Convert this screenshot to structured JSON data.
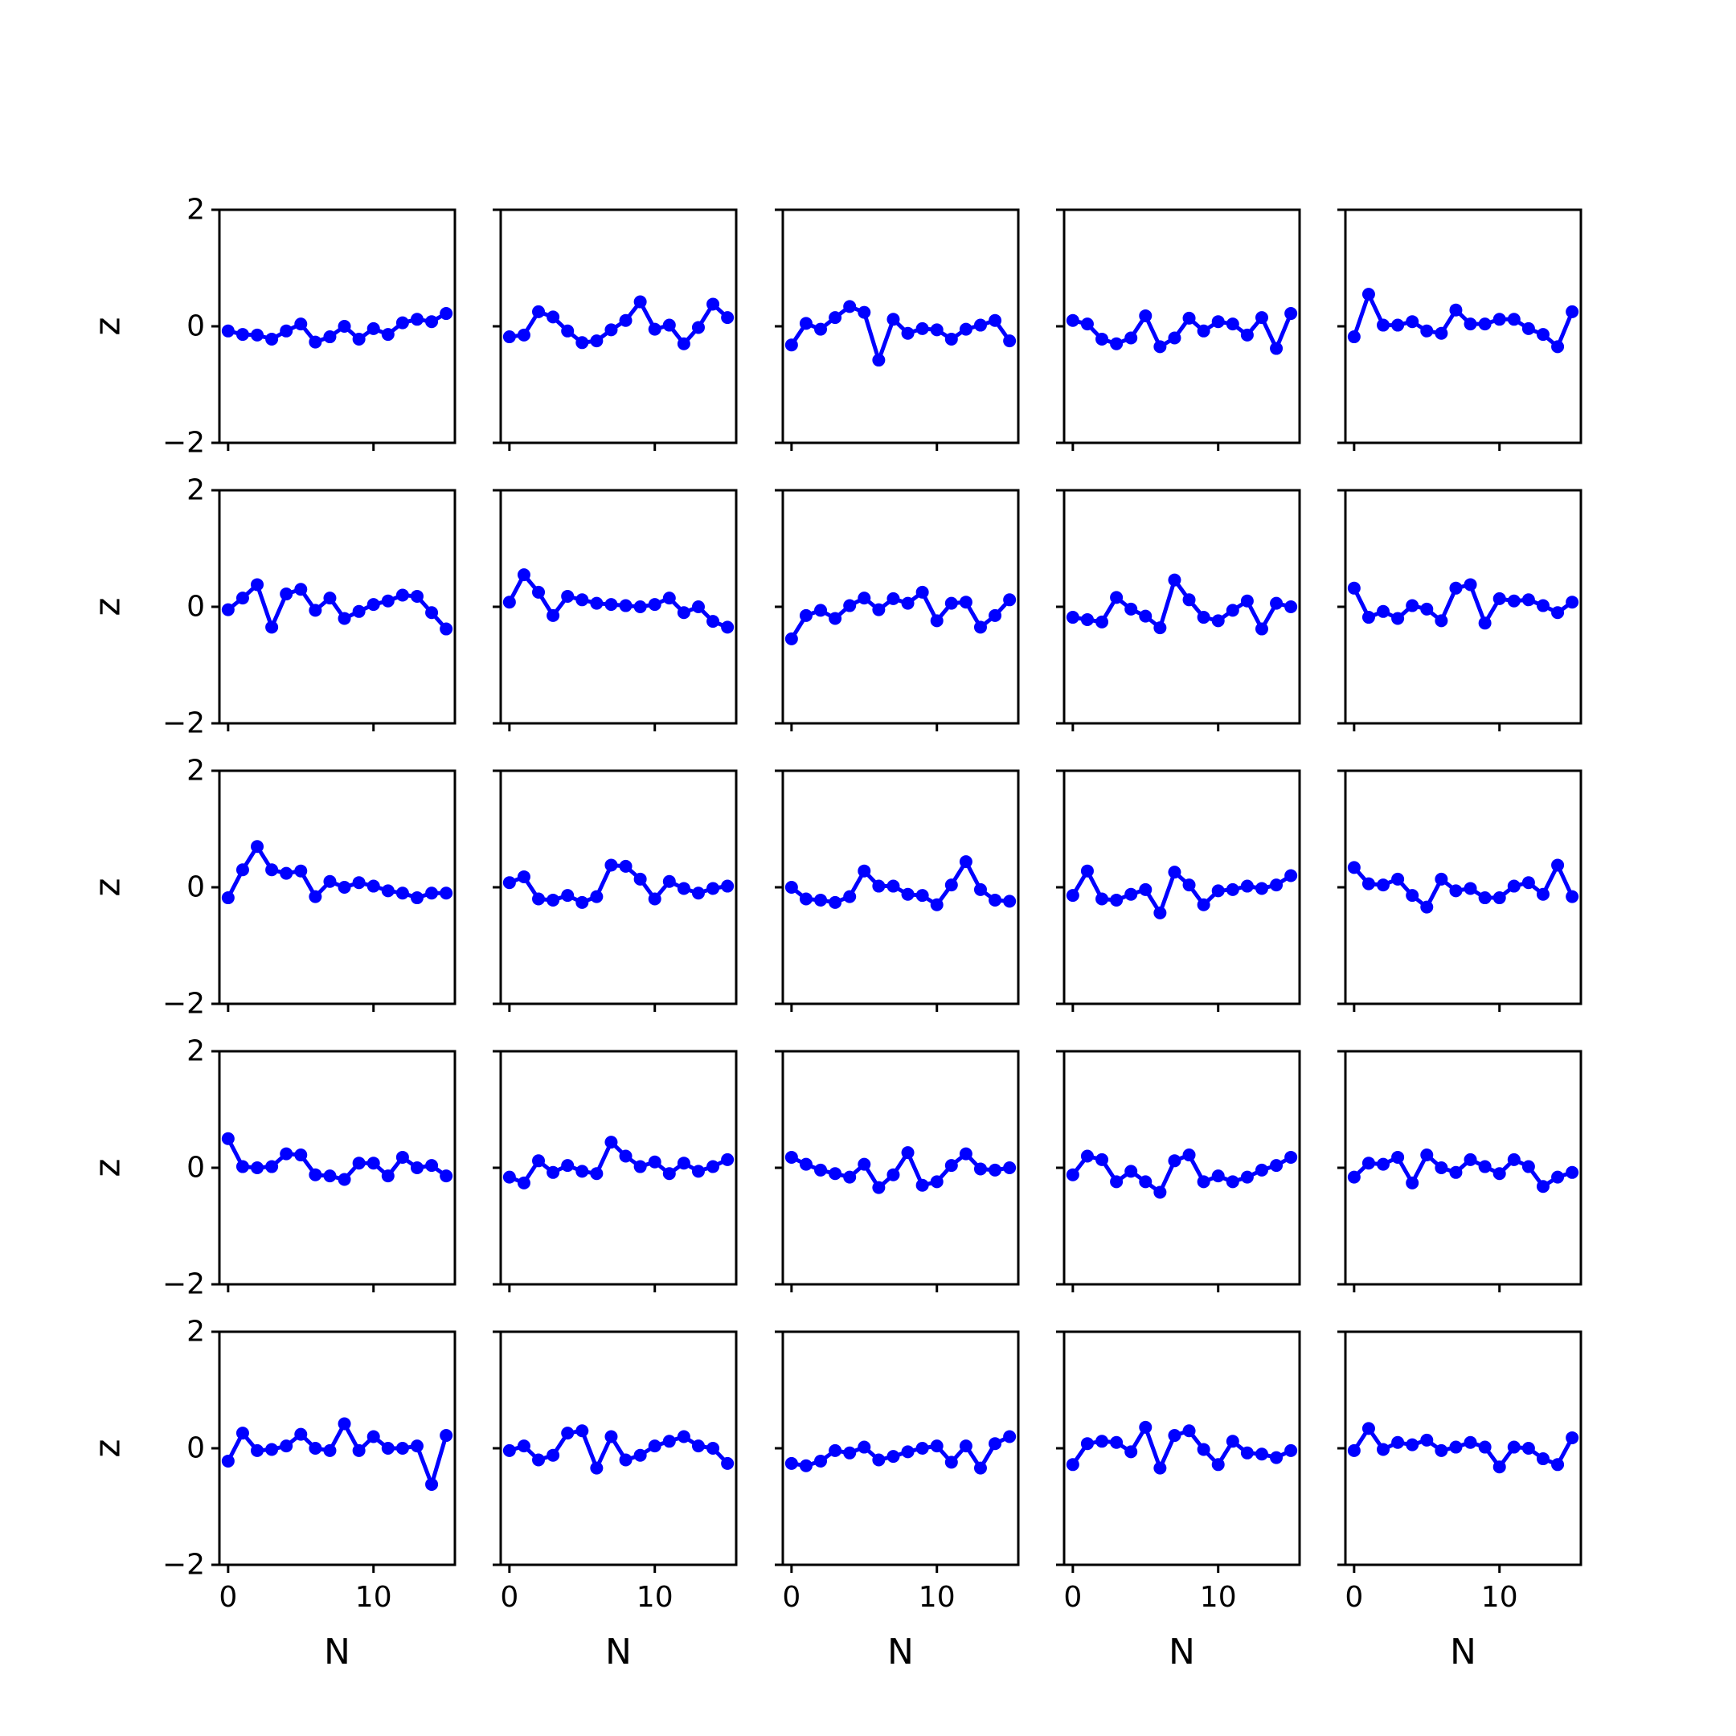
{
  "chart_data": {
    "type": "line",
    "layout": "grid",
    "rows": 5,
    "cols": 5,
    "xlabel": "N",
    "ylabel": "z",
    "xlim": [
      -0.6,
      15.6
    ],
    "ylim": [
      -2,
      2
    ],
    "xticks": [
      0,
      10
    ],
    "xtick_labels": [
      "0",
      "10"
    ],
    "yticks": [
      -2,
      0,
      2
    ],
    "ytick_labels": [
      "−2",
      "0",
      "2"
    ],
    "marker": "circle",
    "color": "#0000ff",
    "x": [
      0,
      1,
      2,
      3,
      4,
      5,
      6,
      7,
      8,
      9,
      10,
      11,
      12,
      13,
      14,
      15
    ],
    "panels": [
      {
        "row": 1,
        "col": 1,
        "y": [
          -0.08,
          -0.14,
          -0.15,
          -0.22,
          -0.08,
          0.04,
          -0.27,
          -0.18,
          0.0,
          -0.22,
          -0.04,
          -0.14,
          0.06,
          0.12,
          0.08,
          0.22
        ]
      },
      {
        "row": 1,
        "col": 2,
        "y": [
          -0.18,
          -0.15,
          0.25,
          0.16,
          -0.08,
          -0.28,
          -0.25,
          -0.06,
          0.1,
          0.42,
          -0.05,
          0.02,
          -0.3,
          -0.02,
          0.38,
          0.15
        ]
      },
      {
        "row": 1,
        "col": 3,
        "y": [
          -0.32,
          0.05,
          -0.05,
          0.15,
          0.34,
          0.24,
          -0.58,
          0.12,
          -0.12,
          -0.04,
          -0.06,
          -0.22,
          -0.05,
          0.02,
          0.1,
          -0.25
        ]
      },
      {
        "row": 1,
        "col": 4,
        "y": [
          0.1,
          0.04,
          -0.22,
          -0.3,
          -0.2,
          0.18,
          -0.35,
          -0.2,
          0.14,
          -0.08,
          0.08,
          0.04,
          -0.15,
          0.15,
          -0.38,
          0.22
        ]
      },
      {
        "row": 1,
        "col": 5,
        "y": [
          -0.18,
          0.55,
          0.02,
          0.02,
          0.08,
          -0.08,
          -0.12,
          0.28,
          0.04,
          0.04,
          0.12,
          0.12,
          -0.04,
          -0.14,
          -0.35,
          0.25
        ]
      },
      {
        "row": 2,
        "col": 1,
        "y": [
          -0.05,
          0.15,
          0.38,
          -0.35,
          0.22,
          0.3,
          -0.06,
          0.15,
          -0.2,
          -0.08,
          0.04,
          0.1,
          0.2,
          0.18,
          -0.1,
          -0.38
        ]
      },
      {
        "row": 2,
        "col": 2,
        "y": [
          0.08,
          0.55,
          0.25,
          -0.15,
          0.18,
          0.12,
          0.06,
          0.04,
          0.02,
          0.0,
          0.04,
          0.15,
          -0.1,
          0.0,
          -0.25,
          -0.35
        ]
      },
      {
        "row": 2,
        "col": 3,
        "y": [
          -0.55,
          -0.15,
          -0.06,
          -0.2,
          0.02,
          0.15,
          -0.05,
          0.14,
          0.06,
          0.25,
          -0.24,
          0.06,
          0.08,
          -0.35,
          -0.15,
          0.12
        ]
      },
      {
        "row": 2,
        "col": 4,
        "y": [
          -0.18,
          -0.22,
          -0.26,
          0.16,
          -0.04,
          -0.16,
          -0.36,
          0.46,
          0.12,
          -0.18,
          -0.24,
          -0.06,
          0.1,
          -0.38,
          0.06,
          0.0
        ]
      },
      {
        "row": 2,
        "col": 5,
        "y": [
          0.32,
          -0.18,
          -0.08,
          -0.2,
          0.02,
          -0.04,
          -0.24,
          0.32,
          0.38,
          -0.28,
          0.14,
          0.1,
          0.12,
          0.02,
          -0.1,
          0.08
        ]
      },
      {
        "row": 3,
        "col": 1,
        "y": [
          -0.18,
          0.3,
          0.7,
          0.3,
          0.24,
          0.28,
          -0.16,
          0.1,
          0.0,
          0.08,
          0.02,
          -0.06,
          -0.1,
          -0.18,
          -0.1,
          -0.1
        ]
      },
      {
        "row": 3,
        "col": 2,
        "y": [
          0.08,
          0.18,
          -0.2,
          -0.22,
          -0.14,
          -0.26,
          -0.16,
          0.38,
          0.36,
          0.14,
          -0.2,
          0.1,
          -0.02,
          -0.1,
          -0.02,
          0.02
        ]
      },
      {
        "row": 3,
        "col": 3,
        "y": [
          0.0,
          -0.2,
          -0.22,
          -0.26,
          -0.16,
          0.28,
          0.02,
          0.02,
          -0.12,
          -0.14,
          -0.3,
          0.04,
          0.44,
          -0.04,
          -0.22,
          -0.24
        ]
      },
      {
        "row": 3,
        "col": 4,
        "y": [
          -0.14,
          0.28,
          -0.2,
          -0.22,
          -0.12,
          -0.04,
          -0.44,
          0.26,
          0.04,
          -0.3,
          -0.06,
          -0.04,
          0.02,
          -0.02,
          0.04,
          0.2
        ]
      },
      {
        "row": 3,
        "col": 5,
        "y": [
          0.34,
          0.06,
          0.04,
          0.14,
          -0.14,
          -0.34,
          0.14,
          -0.06,
          -0.02,
          -0.18,
          -0.18,
          0.02,
          0.08,
          -0.12,
          0.38,
          -0.16
        ]
      },
      {
        "row": 4,
        "col": 1,
        "y": [
          0.5,
          0.02,
          0.0,
          0.02,
          0.24,
          0.22,
          -0.12,
          -0.14,
          -0.2,
          0.08,
          0.08,
          -0.14,
          0.18,
          0.0,
          0.04,
          -0.14
        ]
      },
      {
        "row": 4,
        "col": 2,
        "y": [
          -0.16,
          -0.26,
          0.12,
          -0.08,
          0.04,
          -0.06,
          -0.1,
          0.44,
          0.2,
          0.02,
          0.1,
          -0.1,
          0.08,
          -0.06,
          0.02,
          0.14
        ]
      },
      {
        "row": 4,
        "col": 3,
        "y": [
          0.18,
          0.06,
          -0.04,
          -0.1,
          -0.16,
          0.06,
          -0.34,
          -0.12,
          0.26,
          -0.3,
          -0.24,
          0.04,
          0.24,
          -0.02,
          -0.04,
          0.0
        ]
      },
      {
        "row": 4,
        "col": 4,
        "y": [
          -0.12,
          0.2,
          0.14,
          -0.24,
          -0.06,
          -0.24,
          -0.42,
          0.12,
          0.22,
          -0.24,
          -0.14,
          -0.24,
          -0.16,
          -0.04,
          0.04,
          0.18
        ]
      },
      {
        "row": 4,
        "col": 5,
        "y": [
          -0.16,
          0.08,
          0.06,
          0.18,
          -0.26,
          0.22,
          0.0,
          -0.08,
          0.14,
          0.02,
          -0.1,
          0.14,
          0.02,
          -0.32,
          -0.16,
          -0.08
        ]
      },
      {
        "row": 5,
        "col": 1,
        "y": [
          -0.22,
          0.26,
          -0.04,
          -0.02,
          0.04,
          0.24,
          0.0,
          -0.04,
          0.42,
          -0.04,
          0.2,
          0.0,
          0.0,
          0.04,
          -0.62,
          0.22
        ]
      },
      {
        "row": 5,
        "col": 2,
        "y": [
          -0.04,
          0.04,
          -0.2,
          -0.12,
          0.26,
          0.3,
          -0.34,
          0.2,
          -0.2,
          -0.12,
          0.04,
          0.12,
          0.2,
          0.04,
          0.0,
          -0.26
        ]
      },
      {
        "row": 5,
        "col": 3,
        "y": [
          -0.26,
          -0.3,
          -0.22,
          -0.04,
          -0.08,
          0.02,
          -0.2,
          -0.14,
          -0.06,
          0.0,
          0.04,
          -0.24,
          0.04,
          -0.34,
          0.08,
          0.2
        ]
      },
      {
        "row": 5,
        "col": 4,
        "y": [
          -0.28,
          0.08,
          0.12,
          0.1,
          -0.06,
          0.36,
          -0.34,
          0.22,
          0.3,
          -0.02,
          -0.28,
          0.12,
          -0.08,
          -0.1,
          -0.16,
          -0.04
        ]
      },
      {
        "row": 5,
        "col": 5,
        "y": [
          -0.04,
          0.34,
          -0.02,
          0.1,
          0.06,
          0.14,
          -0.04,
          0.02,
          0.1,
          0.02,
          -0.32,
          0.02,
          0.0,
          -0.18,
          -0.28,
          0.18
        ]
      }
    ]
  }
}
